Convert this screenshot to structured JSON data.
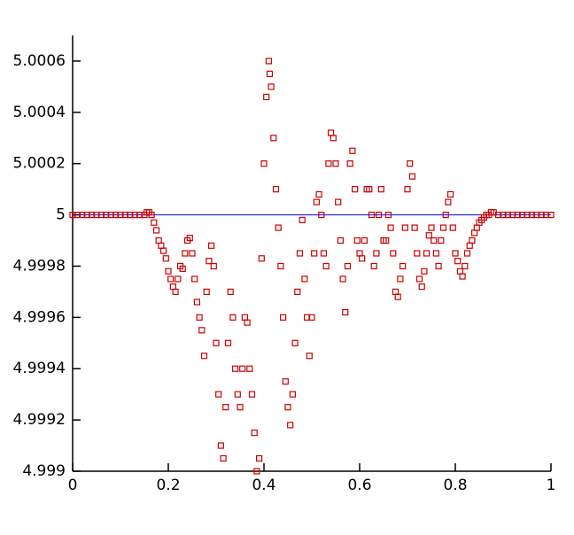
{
  "chart_data": {
    "type": "scatter",
    "color": "#cc0000",
    "reference_line": {
      "value": 5,
      "color": "#0000ff"
    },
    "xlim": [
      0,
      1
    ],
    "xticks": [
      0,
      0.2,
      0.4,
      0.6,
      0.8,
      1
    ],
    "ylim": [
      4.999,
      5.0007
    ],
    "yticks": [
      4.999,
      4.9992,
      4.9994,
      4.9996,
      4.9998,
      5,
      5.0002,
      5.0004,
      5.0006
    ],
    "x": [
      0,
      0.01,
      0.02,
      0.03,
      0.04,
      0.05,
      0.06,
      0.07,
      0.08,
      0.09,
      0.1,
      0.11,
      0.12,
      0.13,
      0.14,
      0.15,
      0.155,
      0.16,
      0.165,
      0.17,
      0.175,
      0.18,
      0.185,
      0.19,
      0.195,
      0.2,
      0.205,
      0.21,
      0.215,
      0.22,
      0.225,
      0.23,
      0.235,
      0.24,
      0.245,
      0.25,
      0.255,
      0.26,
      0.265,
      0.27,
      0.275,
      0.28,
      0.285,
      0.29,
      0.295,
      0.3,
      0.305,
      0.31,
      0.315,
      0.32,
      0.325,
      0.33,
      0.335,
      0.34,
      0.345,
      0.35,
      0.355,
      0.36,
      0.365,
      0.37,
      0.375,
      0.38,
      0.385,
      0.39,
      0.395,
      0.4,
      0.405,
      0.41,
      0.412,
      0.415,
      0.42,
      0.425,
      0.43,
      0.435,
      0.44,
      0.445,
      0.45,
      0.455,
      0.46,
      0.465,
      0.47,
      0.475,
      0.48,
      0.485,
      0.49,
      0.495,
      0.5,
      0.505,
      0.51,
      0.515,
      0.52,
      0.525,
      0.53,
      0.535,
      0.54,
      0.545,
      0.55,
      0.555,
      0.56,
      0.565,
      0.57,
      0.575,
      0.58,
      0.585,
      0.59,
      0.595,
      0.6,
      0.605,
      0.61,
      0.615,
      0.62,
      0.625,
      0.63,
      0.635,
      0.64,
      0.645,
      0.65,
      0.655,
      0.66,
      0.665,
      0.67,
      0.675,
      0.68,
      0.685,
      0.69,
      0.695,
      0.7,
      0.705,
      0.71,
      0.715,
      0.72,
      0.725,
      0.73,
      0.735,
      0.74,
      0.745,
      0.75,
      0.755,
      0.76,
      0.765,
      0.77,
      0.775,
      0.78,
      0.785,
      0.79,
      0.795,
      0.8,
      0.805,
      0.81,
      0.815,
      0.82,
      0.825,
      0.83,
      0.835,
      0.84,
      0.845,
      0.85,
      0.855,
      0.86,
      0.865,
      0.87,
      0.875,
      0.88,
      0.89,
      0.9,
      0.91,
      0.92,
      0.93,
      0.94,
      0.95,
      0.96,
      0.97,
      0.98,
      0.99,
      1
    ],
    "values": [
      5,
      5,
      5,
      5,
      5,
      5,
      5,
      5,
      5,
      5,
      5,
      5,
      5,
      5,
      5,
      5,
      5.00001,
      5.00001,
      5,
      4.99997,
      4.99994,
      4.9999,
      4.99988,
      4.99986,
      4.99983,
      4.99978,
      4.99975,
      4.99972,
      4.9997,
      4.99975,
      4.9998,
      4.99979,
      4.99985,
      4.9999,
      4.99991,
      4.99985,
      4.99975,
      4.99966,
      4.9996,
      4.99955,
      4.99945,
      4.9997,
      4.99982,
      4.99988,
      4.9998,
      4.9995,
      4.9993,
      4.9991,
      4.99905,
      4.99925,
      4.9995,
      4.9997,
      4.9996,
      4.9994,
      4.9993,
      4.99925,
      4.9994,
      4.9996,
      4.99958,
      4.9994,
      4.9993,
      4.99915,
      4.999,
      4.99905,
      4.99983,
      5.0002,
      5.00046,
      5.0006,
      5.00055,
      5.0005,
      5.0003,
      5.0001,
      4.99995,
      4.9998,
      4.9996,
      4.99935,
      4.99925,
      4.99918,
      4.9993,
      4.9995,
      4.9997,
      4.99985,
      4.99998,
      4.99975,
      4.9996,
      4.99945,
      4.9996,
      4.99985,
      5.00005,
      5.00008,
      5,
      4.99985,
      4.9998,
      5.0002,
      5.00032,
      5.0003,
      5.0002,
      5.00005,
      4.9999,
      4.99975,
      4.99962,
      4.9998,
      5.0002,
      5.00025,
      5.0001,
      4.9999,
      4.99985,
      4.99983,
      4.9999,
      5.0001,
      5.0001,
      5,
      4.9998,
      4.99985,
      5,
      5.0001,
      4.9999,
      4.9999,
      5,
      4.99995,
      4.99985,
      4.9997,
      4.99968,
      4.99975,
      4.9998,
      4.99995,
      5.0001,
      5.0002,
      5.00015,
      4.99995,
      4.99985,
      4.99975,
      4.99972,
      4.99978,
      4.99985,
      4.99992,
      4.99995,
      4.9999,
      4.99985,
      4.9998,
      4.9999,
      4.99995,
      5,
      5.00005,
      5.00008,
      4.99995,
      4.99985,
      4.99982,
      4.99978,
      4.99976,
      4.9998,
      4.99985,
      4.99988,
      4.9999,
      4.99993,
      4.99995,
      4.99997,
      4.99998,
      4.99999,
      5,
      5,
      5.00001,
      5.00001,
      5,
      5,
      5,
      5,
      5,
      5,
      5,
      5,
      5,
      5,
      5,
      5
    ]
  }
}
